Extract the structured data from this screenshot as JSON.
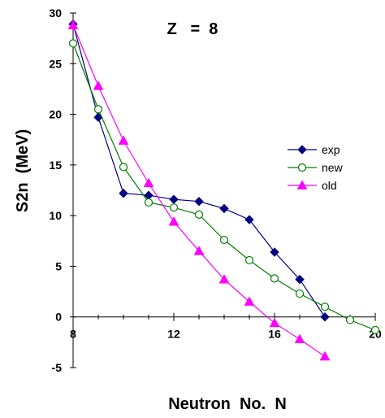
{
  "chart_data": {
    "type": "line",
    "title": "Z   =  8",
    "xlabel": "Neutron  No.  N",
    "ylabel": "S2n  (MeV)",
    "xlim": [
      8,
      20
    ],
    "ylim": [
      -5,
      30
    ],
    "x_ticks": [
      8,
      12,
      16,
      20
    ],
    "y_ticks": [
      -5,
      0,
      5,
      10,
      15,
      20,
      25,
      30
    ],
    "x_tick_labels": [
      "8",
      "12",
      "16",
      "20"
    ],
    "y_tick_labels": [
      "-5",
      "0",
      "5",
      "10",
      "15",
      "20",
      "25",
      "30"
    ],
    "legend_position": "right",
    "grid": false,
    "series": [
      {
        "name": "exp",
        "color": "#000080",
        "marker": "diamond",
        "x": [
          8,
          9,
          10,
          11,
          12,
          13,
          14,
          15,
          16,
          17,
          18
        ],
        "y": [
          28.9,
          19.7,
          12.2,
          12.0,
          11.6,
          11.4,
          10.7,
          9.6,
          6.4,
          3.7,
          0.0
        ]
      },
      {
        "name": "new",
        "color": "#008000",
        "marker": "circle",
        "x": [
          8,
          9,
          10,
          11,
          12,
          13,
          14,
          15,
          16,
          17,
          18,
          19,
          20
        ],
        "y": [
          27.0,
          20.5,
          14.8,
          11.3,
          10.8,
          10.1,
          7.6,
          5.6,
          3.8,
          2.3,
          1.0,
          -0.3,
          -1.3
        ]
      },
      {
        "name": "old",
        "color": "#ff00ff",
        "marker": "triangle",
        "x": [
          8,
          9,
          10,
          11,
          12,
          13,
          14,
          15,
          16,
          17,
          18
        ],
        "y": [
          28.8,
          22.8,
          17.4,
          13.2,
          9.4,
          6.5,
          3.7,
          1.5,
          -0.6,
          -2.2,
          -3.9
        ]
      }
    ]
  }
}
